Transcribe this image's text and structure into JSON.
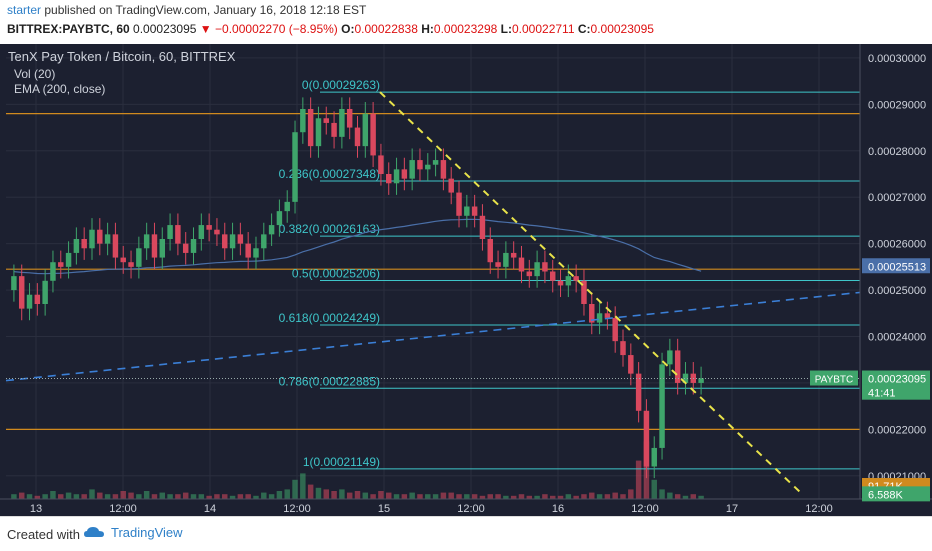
{
  "header": {
    "author": "starter",
    "published_text": "published on TradingView.com, January 16, 2018 12:18 EST",
    "symbol_text": "BITTREX:PAYBTC, 60",
    "last_price": "0.00023095",
    "change_arrow": "▼",
    "change_text": "−0.00002270 (−8.95%)",
    "o_label": "O:",
    "o_value": "0.00022838",
    "h_label": "H:",
    "h_value": "0.00023298",
    "l_label": "L:",
    "l_value": "0.00022711",
    "c_label": "C:",
    "c_value": "0.00023095"
  },
  "legend": {
    "title": "TenX Pay Token / Bitcoin, 60, BITTREX",
    "vol": "Vol (20)",
    "ema": "EMA (200, close)"
  },
  "footer": {
    "created_with": "Created with",
    "brand": "TradingView"
  },
  "colors": {
    "background": "#1c2030",
    "grid": "#2a2e3e",
    "bull": "#3fa56b",
    "bear": "#d9485e",
    "fib": "#3ec5c9",
    "orange_line": "#d08a1e",
    "trend_yellow": "#e8e34a",
    "trend_blue": "#3b7fd6",
    "ema": "#4a6fa8"
  },
  "chart_data": {
    "type": "candlestick",
    "title": "TenX Pay Token / Bitcoin, 60, BITTREX",
    "x_tick_labels": [
      "13",
      "12:00",
      "14",
      "12:00",
      "15",
      "12:00",
      "16",
      "12:00",
      "17",
      "12:00"
    ],
    "y_tick_labels": [
      "0.00030000",
      "0.00029000",
      "0.00028000",
      "0.00027000",
      "0.00026000",
      "0.00025000",
      "0.00024000",
      "0.00023000",
      "0.00022000",
      "0.00021000"
    ],
    "ylim": [
      0.000205,
      0.000303
    ],
    "fib_levels": [
      {
        "label": "0(0.00029263)",
        "value": 0.00029263
      },
      {
        "label": "0.236(0.00027348)",
        "value": 0.00027348
      },
      {
        "label": "0.382(0.00026163)",
        "value": 0.00026163
      },
      {
        "label": "0.5(0.00025206)",
        "value": 0.00025206
      },
      {
        "label": "0.618(0.00024249)",
        "value": 0.00024249
      },
      {
        "label": "0.786(0.00022885)",
        "value": 0.00022885
      },
      {
        "label": "1(0.00021149)",
        "value": 0.00021149
      }
    ],
    "horizontal_lines": [
      0.000288,
      0.0002545,
      0.00022
    ],
    "price_badges": [
      {
        "label": "0.00025513",
        "value": 0.00025513,
        "color": "#4a6fa8"
      },
      {
        "label": "PAYBTC",
        "value": 0.00023095,
        "color": "#3fa56b"
      },
      {
        "label": "0.00023095",
        "value": 0.00023095,
        "color": "#3fa56b"
      },
      {
        "label": "41:41",
        "value": 0.0002279,
        "color": "#3fa56b"
      },
      {
        "label": "91.71K",
        "value": 0.0002078,
        "color": "#d08a1e"
      },
      {
        "label": "6.588K",
        "value": 0.000206,
        "color": "#3fa56b"
      }
    ],
    "candles_close": [
      0.000253,
      0.000246,
      0.000249,
      0.000247,
      0.000252,
      0.000256,
      0.000255,
      0.000258,
      0.000261,
      0.000259,
      0.000263,
      0.00026,
      0.000262,
      0.000257,
      0.000256,
      0.000255,
      0.000259,
      0.000262,
      0.000257,
      0.000261,
      0.000264,
      0.00026,
      0.000258,
      0.000261,
      0.000264,
      0.000263,
      0.000262,
      0.000259,
      0.000262,
      0.00026,
      0.000257,
      0.000259,
      0.000262,
      0.000264,
      0.000267,
      0.000269,
      0.000284,
      0.000289,
      0.000281,
      0.000287,
      0.000286,
      0.000283,
      0.000289,
      0.000285,
      0.000281,
      0.000288,
      0.000279,
      0.000275,
      0.000273,
      0.000276,
      0.000274,
      0.000278,
      0.000276,
      0.000277,
      0.000278,
      0.000274,
      0.000271,
      0.000266,
      0.000268,
      0.000266,
      0.000261,
      0.000256,
      0.000255,
      0.000258,
      0.000257,
      0.000254,
      0.000253,
      0.000256,
      0.000254,
      0.000252,
      0.000251,
      0.000253,
      0.000252,
      0.000247,
      0.000243,
      0.000245,
      0.000244,
      0.000239,
      0.000236,
      0.000232,
      0.000224,
      0.000212,
      0.000216,
      0.000234,
      0.000237,
      0.00023,
      0.000232,
      0.00023,
      0.000231
    ],
    "volume_relative": [
      0.3,
      0.4,
      0.3,
      0.2,
      0.3,
      0.5,
      0.3,
      0.4,
      0.3,
      0.3,
      0.6,
      0.4,
      0.3,
      0.3,
      0.5,
      0.4,
      0.3,
      0.5,
      0.3,
      0.4,
      0.3,
      0.3,
      0.4,
      0.3,
      0.3,
      0.2,
      0.3,
      0.3,
      0.2,
      0.3,
      0.3,
      0.2,
      0.4,
      0.3,
      0.5,
      0.6,
      1.2,
      1.6,
      0.9,
      0.7,
      0.6,
      0.5,
      0.6,
      0.4,
      0.5,
      0.4,
      0.3,
      0.5,
      0.4,
      0.3,
      0.3,
      0.4,
      0.3,
      0.3,
      0.3,
      0.4,
      0.4,
      0.3,
      0.3,
      0.3,
      0.2,
      0.3,
      0.3,
      0.2,
      0.2,
      0.3,
      0.2,
      0.2,
      0.3,
      0.2,
      0.2,
      0.3,
      0.2,
      0.3,
      0.4,
      0.3,
      0.3,
      0.4,
      0.3,
      0.6,
      2.4,
      3.6,
      1.2,
      0.6,
      0.4,
      0.3,
      0.2,
      0.3,
      0.2
    ]
  }
}
